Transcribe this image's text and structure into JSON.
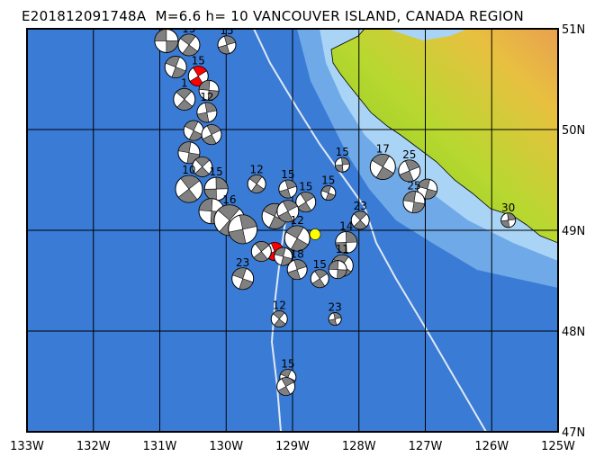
{
  "title": "E201812091748A  M=6.6 h= 10 VANCOUVER ISLAND, CANADA REGION",
  "map": {
    "lon_range": [
      -133,
      -125
    ],
    "lat_range": [
      47,
      51
    ],
    "lon_ticks": [
      {
        "value": -133,
        "label": "133W"
      },
      {
        "value": -132,
        "label": "132W"
      },
      {
        "value": -131,
        "label": "131W"
      },
      {
        "value": -130,
        "label": "130W"
      },
      {
        "value": -129,
        "label": "129W"
      },
      {
        "value": -128,
        "label": "128W"
      },
      {
        "value": -127,
        "label": "127W"
      },
      {
        "value": -126,
        "label": "126W"
      },
      {
        "value": -125,
        "label": "125W"
      }
    ],
    "lat_ticks": [
      {
        "value": 51,
        "label": "51N"
      },
      {
        "value": 50,
        "label": "50N"
      },
      {
        "value": 49,
        "label": "49N"
      },
      {
        "value": 48,
        "label": "48N"
      },
      {
        "value": 47,
        "label": "47N"
      }
    ],
    "grid": true,
    "colors": {
      "ocean": "#3a7bd5",
      "shelf": "#8ec4ef",
      "land_low": "#7cc61e",
      "land_high": "#e8a050",
      "highlight": "#ff0000",
      "epicenter": "#ffff00"
    },
    "epicenter": {
      "lon": -128.66,
      "lat": 48.96
    },
    "events": [
      {
        "lon": -130.9,
        "lat": 50.88,
        "label": "",
        "r": 13
      },
      {
        "lon": -130.56,
        "lat": 50.84,
        "label": "15",
        "r": 12
      },
      {
        "lon": -129.99,
        "lat": 50.84,
        "label": "15",
        "r": 10
      },
      {
        "lon": -130.76,
        "lat": 50.62,
        "label": "",
        "r": 12
      },
      {
        "lon": -130.42,
        "lat": 50.53,
        "label": "15",
        "r": 11,
        "highlight": true
      },
      {
        "lon": -130.26,
        "lat": 50.39,
        "label": "",
        "r": 11
      },
      {
        "lon": -130.63,
        "lat": 50.3,
        "label": "1",
        "r": 12
      },
      {
        "lon": -130.29,
        "lat": 50.17,
        "label": "12",
        "r": 11
      },
      {
        "lon": -130.49,
        "lat": 49.99,
        "label": "",
        "r": 11
      },
      {
        "lon": -130.22,
        "lat": 49.95,
        "label": "",
        "r": 11
      },
      {
        "lon": -130.56,
        "lat": 49.77,
        "label": "",
        "r": 12
      },
      {
        "lon": -130.36,
        "lat": 49.63,
        "label": "",
        "r": 11
      },
      {
        "lon": -128.25,
        "lat": 49.65,
        "label": "15",
        "r": 8
      },
      {
        "lon": -127.64,
        "lat": 49.63,
        "label": "17",
        "r": 14
      },
      {
        "lon": -127.24,
        "lat": 49.59,
        "label": "25",
        "r": 12
      },
      {
        "lon": -126.97,
        "lat": 49.41,
        "label": "",
        "r": 11
      },
      {
        "lon": -130.56,
        "lat": 49.41,
        "label": "10",
        "r": 15
      },
      {
        "lon": -130.15,
        "lat": 49.41,
        "label": "15",
        "r": 13
      },
      {
        "lon": -129.54,
        "lat": 49.46,
        "label": "12",
        "r": 10
      },
      {
        "lon": -129.07,
        "lat": 49.41,
        "label": "15",
        "r": 10
      },
      {
        "lon": -128.46,
        "lat": 49.37,
        "label": "15",
        "r": 8
      },
      {
        "lon": -128.8,
        "lat": 49.28,
        "label": "15",
        "r": 11
      },
      {
        "lon": -130.22,
        "lat": 49.19,
        "label": "",
        "r": 14
      },
      {
        "lon": -129.95,
        "lat": 49.1,
        "label": "16",
        "r": 17
      },
      {
        "lon": -129.75,
        "lat": 49.01,
        "label": "",
        "r": 16
      },
      {
        "lon": -129.27,
        "lat": 49.14,
        "label": "",
        "r": 14
      },
      {
        "lon": -129.07,
        "lat": 49.19,
        "label": "",
        "r": 12
      },
      {
        "lon": -127.17,
        "lat": 49.28,
        "label": "25",
        "r": 12
      },
      {
        "lon": -127.98,
        "lat": 49.1,
        "label": "23",
        "r": 10
      },
      {
        "lon": -125.75,
        "lat": 49.1,
        "label": "30",
        "r": 8
      },
      {
        "lon": -128.93,
        "lat": 48.92,
        "label": "12",
        "r": 14
      },
      {
        "lon": -129.27,
        "lat": 48.79,
        "label": "",
        "r": 10,
        "highlight": true
      },
      {
        "lon": -129.14,
        "lat": 48.74,
        "label": "",
        "r": 10
      },
      {
        "lon": -129.47,
        "lat": 48.79,
        "label": "",
        "r": 11
      },
      {
        "lon": -128.19,
        "lat": 48.88,
        "label": "14",
        "r": 12
      },
      {
        "lon": -128.25,
        "lat": 48.65,
        "label": "11",
        "r": 12
      },
      {
        "lon": -128.93,
        "lat": 48.61,
        "label": "18",
        "r": 11
      },
      {
        "lon": -129.75,
        "lat": 48.52,
        "label": "23",
        "r": 12
      },
      {
        "lon": -128.59,
        "lat": 48.52,
        "label": "15",
        "r": 10
      },
      {
        "lon": -128.32,
        "lat": 48.61,
        "label": "",
        "r": 10
      },
      {
        "lon": -129.2,
        "lat": 48.12,
        "label": "12",
        "r": 9
      },
      {
        "lon": -128.36,
        "lat": 48.12,
        "label": "23",
        "r": 7
      },
      {
        "lon": -129.07,
        "lat": 47.54,
        "label": "15",
        "r": 9
      },
      {
        "lon": -129.1,
        "lat": 47.45,
        "label": "",
        "r": 10
      }
    ]
  }
}
